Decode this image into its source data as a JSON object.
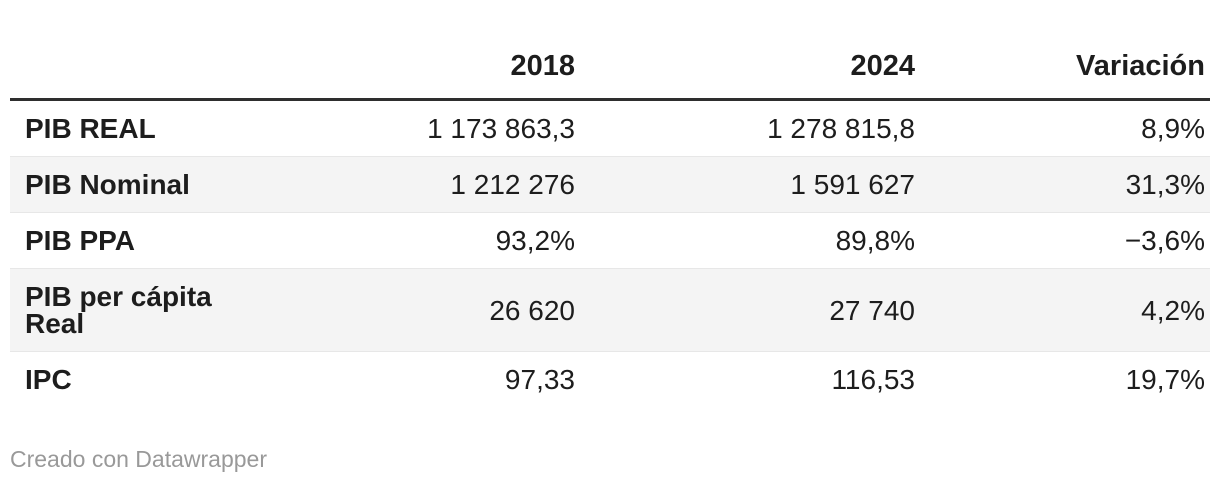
{
  "chart_data": {
    "type": "table",
    "columns": [
      "",
      "2018",
      "2024",
      "Variación"
    ],
    "rows": [
      {
        "label": "PIB REAL",
        "values": [
          "1 173 863,3",
          "1 278 815,8",
          "8,9%"
        ]
      },
      {
        "label": "PIB Nominal",
        "values": [
          "1 212 276",
          "1 591 627",
          "31,3%"
        ]
      },
      {
        "label": "PIB PPA",
        "values": [
          "93,2%",
          "89,8%",
          "−3,6%"
        ]
      },
      {
        "label": "PIB per cápita Real",
        "values": [
          "26 620",
          "27 740",
          "4,2%"
        ]
      },
      {
        "label": "IPC",
        "values": [
          "97,33",
          "116,53",
          "19,7%"
        ]
      }
    ],
    "layout": {
      "zebra_striping": true,
      "label_column_align": "left",
      "value_columns_align": "right"
    }
  },
  "footer": {
    "attribution": "Creado con Datawrapper"
  },
  "colors": {
    "background": "#ffffff",
    "text": "#1d1d1d",
    "header_rule": "#2e2e2e",
    "row_divider": "#e7e7e7",
    "zebra_row": "#f4f4f4",
    "footer_text": "#999999"
  }
}
